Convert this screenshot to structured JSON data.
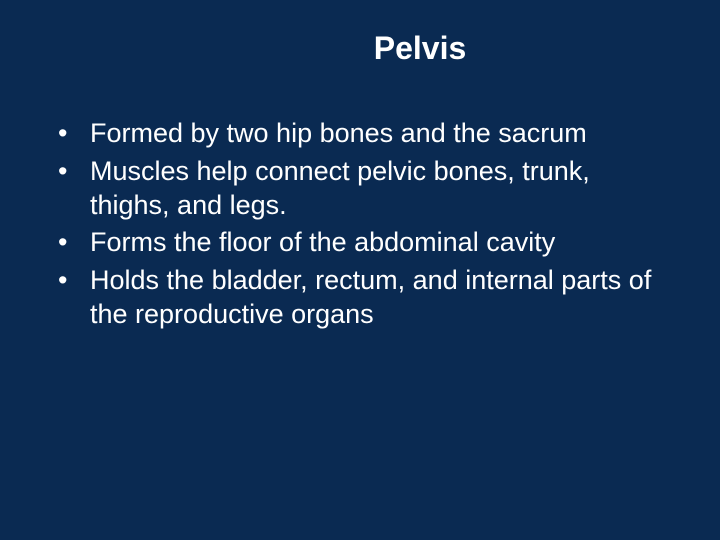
{
  "slide": {
    "title": "Pelvis",
    "bullets": [
      "Formed by two hip bones and the sacrum",
      "Muscles help connect pelvic bones, trunk, thighs, and legs.",
      "Forms the floor of the abdominal cavity",
      "Holds the bladder, rectum, and internal parts of the reproductive organs"
    ],
    "background_color": "#0a2a52",
    "text_color": "#ffffff",
    "title_fontsize": 32,
    "body_fontsize": 27
  }
}
